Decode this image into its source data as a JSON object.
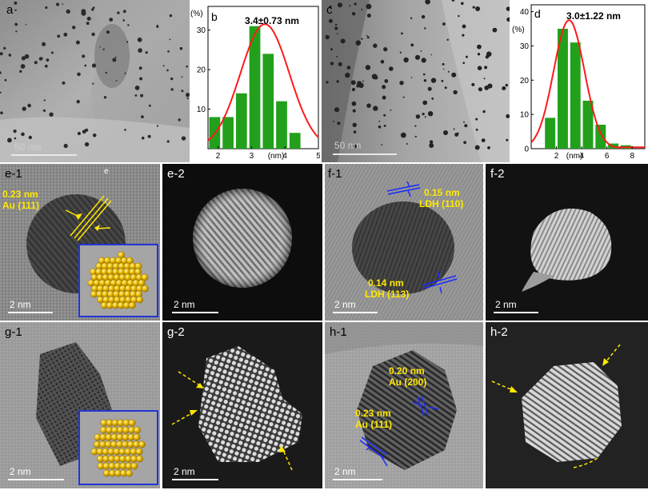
{
  "panels": {
    "a": {
      "label": "a",
      "scale": "50 nm"
    },
    "b": {
      "label": "b"
    },
    "c": {
      "label": "c",
      "scale": "50 nm"
    },
    "d": {
      "label": "d"
    },
    "e1": {
      "label": "e-1",
      "scale": "2 nm",
      "small_mark": "e",
      "spacing": "0.23 nm",
      "plane": "Au (111)"
    },
    "e2": {
      "label": "e-2",
      "scale": "2 nm"
    },
    "f1": {
      "label": "f-1",
      "scale": "2 nm",
      "ann_top": {
        "spacing": "0.15 nm",
        "plane": "LDH (110)"
      },
      "ann_bottom": {
        "spacing": "0.14 nm",
        "plane": "LDH (113)"
      }
    },
    "f2": {
      "label": "f-2",
      "scale": "2 nm"
    },
    "g1": {
      "label": "g-1",
      "scale": "2 nm"
    },
    "g2": {
      "label": "g-2",
      "scale": "2 nm"
    },
    "h1": {
      "label": "h-1",
      "scale": "2 nm",
      "ann_a": {
        "spacing": "0.20 nm",
        "plane": "Au (200)"
      },
      "ann_b": {
        "spacing": "0.23 nm",
        "plane": "Au (111)"
      }
    },
    "h2": {
      "label": "h-2"
    }
  },
  "colors": {
    "bar": "#22a01c",
    "fit": "#ff1a1a",
    "annotation": "#ffe800",
    "lattice_mark": "#1a2cff",
    "arrow": "#ffe800"
  },
  "chart_data": [
    {
      "type": "bar",
      "panel": "b",
      "stat": "3.4±0.73 nm",
      "ylabel": "(%)",
      "xlabel": "(nm)",
      "x_ticks": [
        "2",
        "3",
        "4",
        "5"
      ],
      "y_ticks": [
        "10",
        "20",
        "30"
      ],
      "xlim": [
        1.7,
        5.0
      ],
      "ylim": [
        0,
        36
      ],
      "x": [
        1.9,
        2.3,
        2.7,
        3.1,
        3.5,
        3.9,
        4.3,
        4.7
      ],
      "values": [
        8,
        8,
        14,
        31,
        24,
        12,
        4,
        0
      ],
      "fit": {
        "type": "gaussian",
        "mean": 3.4,
        "sigma": 0.73,
        "peak": 31.5
      }
    },
    {
      "type": "bar",
      "panel": "d",
      "stat": "3.0±1.22 nm",
      "ylabel": "(%)",
      "xlabel": "(nm)",
      "x_ticks": [
        "2",
        "4",
        "6",
        "8"
      ],
      "y_ticks": [
        "0",
        "10",
        "20",
        "30",
        "40"
      ],
      "xlim": [
        0.0,
        9.0
      ],
      "ylim": [
        0,
        42
      ],
      "x": [
        1.5,
        2.5,
        3.5,
        4.5,
        5.5,
        6.5,
        7.5
      ],
      "values": [
        9,
        35,
        31,
        14,
        7,
        1.5,
        1
      ],
      "fit": {
        "type": "gaussian",
        "mean": 3.0,
        "sigma": 1.22,
        "peak": 37.5
      }
    }
  ]
}
